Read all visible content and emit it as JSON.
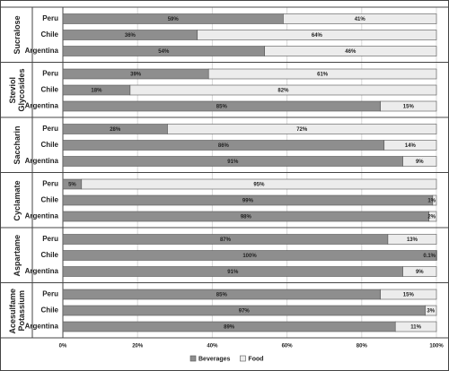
{
  "chart_data": {
    "type": "bar",
    "orientation": "horizontal",
    "stacked": true,
    "groups": [
      {
        "name": "Sucralose",
        "categories": [
          "Peru",
          "Chile",
          "Argentina"
        ]
      },
      {
        "name": "Steviol Glycosides",
        "categories": [
          "Peru",
          "Chile",
          "Argentina"
        ]
      },
      {
        "name": "Saccharin",
        "categories": [
          "Peru",
          "Chile",
          "Argentina"
        ]
      },
      {
        "name": "Cyclamate",
        "categories": [
          "Peru",
          "Chile",
          "Argentina"
        ]
      },
      {
        "name": "Aspartame",
        "categories": [
          "Peru",
          "Chile",
          "Argentina"
        ]
      },
      {
        "name": "Acesulfame Potassium",
        "categories": [
          "Peru",
          "Chile",
          "Argentina"
        ]
      }
    ],
    "series": [
      {
        "name": "Beverages",
        "color": "#8e8e8e",
        "values": [
          59,
          36,
          54,
          39,
          18,
          85,
          28,
          86,
          91,
          5,
          99,
          98,
          87,
          100,
          91,
          85,
          97,
          89
        ],
        "value_labels": [
          "59%",
          "36%",
          "54%",
          "39%",
          "18%",
          "85%",
          "28%",
          "86%",
          "91%",
          "5%",
          "99%",
          "98%",
          "87%",
          "100%",
          "91%",
          "85%",
          "97%",
          "89%"
        ]
      },
      {
        "name": "Food",
        "color": "#ececec",
        "values": [
          41,
          64,
          46,
          61,
          82,
          15,
          72,
          14,
          9,
          95,
          1,
          2,
          13,
          0.1,
          9,
          15,
          3,
          11
        ],
        "value_labels": [
          "41%",
          "64%",
          "46%",
          "61%",
          "82%",
          "15%",
          "72%",
          "14%",
          "9%",
          "95%",
          "1%",
          "2%",
          "13%",
          "0.1%",
          "9%",
          "15%",
          "3%",
          "11%"
        ]
      }
    ],
    "xlim": [
      0,
      100
    ],
    "xticks": [
      {
        "value": 0,
        "label": "0%"
      },
      {
        "value": 20,
        "label": "20%"
      },
      {
        "value": 40,
        "label": "40%"
      },
      {
        "value": 60,
        "label": "60%"
      },
      {
        "value": 80,
        "label": "80%"
      },
      {
        "value": 100,
        "label": "100%"
      }
    ],
    "grid": true,
    "legend": "bottom"
  }
}
